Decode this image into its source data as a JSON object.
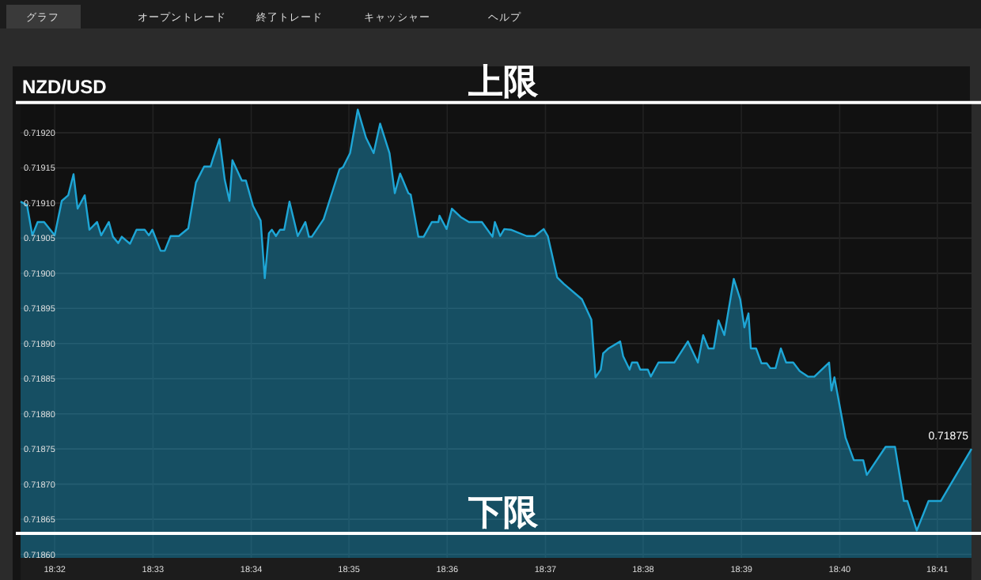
{
  "chart_data": {
    "type": "area",
    "title": "NZD/USD",
    "xlim": [
      18.5275,
      18.6891
    ],
    "ylim": [
      0.718595,
      0.719245
    ],
    "xticks": [
      {
        "value": 18.5333,
        "label": "18:32"
      },
      {
        "value": 18.55,
        "label": "18:33"
      },
      {
        "value": 18.5667,
        "label": "18:34"
      },
      {
        "value": 18.5833,
        "label": "18:35"
      },
      {
        "value": 18.6,
        "label": "18:36"
      },
      {
        "value": 18.6167,
        "label": "18:37"
      },
      {
        "value": 18.6333,
        "label": "18:38"
      },
      {
        "value": 18.65,
        "label": "18:39"
      },
      {
        "value": 18.6667,
        "label": "18:40"
      },
      {
        "value": 18.6833,
        "label": "18:41"
      }
    ],
    "yticks": [
      {
        "value": 0.7186,
        "label": "0.71860"
      },
      {
        "value": 0.71865,
        "label": "0.71865"
      },
      {
        "value": 0.7187,
        "label": "0.71870"
      },
      {
        "value": 0.71875,
        "label": "0.71875"
      },
      {
        "value": 0.7188,
        "label": "0.71880"
      },
      {
        "value": 0.71885,
        "label": "0.71885"
      },
      {
        "value": 0.7189,
        "label": "0.71890"
      },
      {
        "value": 0.71895,
        "label": "0.71895"
      },
      {
        "value": 0.719,
        "label": "0.71900"
      },
      {
        "value": 0.71905,
        "label": "0.71905"
      },
      {
        "value": 0.7191,
        "label": "0.71910"
      },
      {
        "value": 0.71915,
        "label": "0.71915"
      },
      {
        "value": 0.7192,
        "label": "0.71920"
      }
    ],
    "grid": true,
    "series": [
      {
        "color": "#1ea6d6",
        "x": [
          18.5275,
          18.5286,
          18.5295,
          18.5304,
          18.5315,
          18.5333,
          18.5345,
          18.5356,
          18.5365,
          18.5372,
          18.5384,
          18.5392,
          18.5405,
          18.5412,
          18.5425,
          18.5432,
          18.5441,
          18.5447,
          18.5461,
          18.5472,
          18.5486,
          18.5493,
          18.5499,
          18.5513,
          18.552,
          18.553,
          18.5544,
          18.556,
          18.5573,
          18.5587,
          18.5598,
          18.5602,
          18.5613,
          18.5622,
          18.563,
          18.5635,
          18.5651,
          18.5658,
          18.567,
          18.5683,
          18.569,
          18.5697,
          18.5702,
          18.5709,
          18.5716,
          18.5723,
          18.5732,
          18.5746,
          18.5759,
          18.5765,
          18.577,
          18.579,
          18.5817,
          18.5823,
          18.5835,
          18.5848,
          18.5862,
          18.5875,
          18.5886,
          18.5902,
          18.5911,
          18.592,
          18.5934,
          18.5938,
          18.5951,
          18.596,
          18.5974,
          18.5985,
          18.5987,
          18.5999,
          18.6008,
          18.6023,
          18.6037,
          18.6059,
          18.6077,
          18.6081,
          18.609,
          18.6097,
          18.6108,
          18.6135,
          18.6149,
          18.6164,
          18.6171,
          18.6187,
          18.6198,
          18.6229,
          18.6245,
          18.6252,
          18.6261,
          18.6265,
          18.6274,
          18.6294,
          18.6299,
          18.631,
          18.6314,
          18.6323,
          18.6328,
          18.6341,
          18.6346,
          18.6359,
          18.6386,
          18.6409,
          18.6426,
          18.6435,
          18.6444,
          18.6453,
          18.6461,
          18.6471,
          18.6487,
          18.6498,
          18.6505,
          18.6512,
          18.6516,
          18.6525,
          18.6534,
          18.6543,
          18.6549,
          18.6558,
          18.6567,
          18.6576,
          18.6588,
          18.6599,
          18.6613,
          18.6624,
          18.6649,
          18.6653,
          18.6658,
          18.6677,
          18.6691,
          18.6707,
          18.6713,
          18.6745,
          18.6761,
          18.6776,
          18.6782,
          18.6798,
          18.6818,
          18.6839,
          18.6891
        ],
        "values": [
          0.719102,
          0.719097,
          0.719054,
          0.719073,
          0.719073,
          0.719054,
          0.719103,
          0.719111,
          0.719141,
          0.719092,
          0.719111,
          0.719062,
          0.719073,
          0.719054,
          0.719073,
          0.719052,
          0.719043,
          0.719052,
          0.719042,
          0.719062,
          0.719062,
          0.719054,
          0.719062,
          0.719032,
          0.719032,
          0.719053,
          0.719053,
          0.719064,
          0.719129,
          0.719152,
          0.719152,
          0.719163,
          0.719191,
          0.719133,
          0.719103,
          0.719161,
          0.719132,
          0.719132,
          0.719096,
          0.719075,
          0.718993,
          0.719057,
          0.719062,
          0.719053,
          0.719062,
          0.719062,
          0.719102,
          0.719053,
          0.719073,
          0.719052,
          0.719052,
          0.719077,
          0.719148,
          0.719151,
          0.719171,
          0.719233,
          0.719193,
          0.719171,
          0.719213,
          0.719171,
          0.719114,
          0.719142,
          0.719114,
          0.719112,
          0.719052,
          0.719052,
          0.719073,
          0.719073,
          0.719082,
          0.719063,
          0.719092,
          0.71908,
          0.719073,
          0.719073,
          0.719052,
          0.719073,
          0.719053,
          0.719063,
          0.719062,
          0.719053,
          0.719053,
          0.719063,
          0.719053,
          0.718994,
          0.718985,
          0.718963,
          0.718934,
          0.718852,
          0.718863,
          0.718886,
          0.718893,
          0.718903,
          0.718882,
          0.718863,
          0.718873,
          0.718873,
          0.718863,
          0.718863,
          0.718853,
          0.718873,
          0.718873,
          0.718903,
          0.718873,
          0.718912,
          0.718893,
          0.718893,
          0.718933,
          0.718912,
          0.718992,
          0.718963,
          0.718923,
          0.718943,
          0.718893,
          0.718893,
          0.718872,
          0.718872,
          0.718865,
          0.718865,
          0.718893,
          0.718873,
          0.718873,
          0.718861,
          0.718853,
          0.718853,
          0.718873,
          0.718833,
          0.718852,
          0.718766,
          0.718734,
          0.718734,
          0.718713,
          0.718753,
          0.718753,
          0.718676,
          0.718676,
          0.718634,
          0.718676,
          0.718676,
          0.71875
        ]
      }
    ],
    "ref_lines": [
      {
        "axis": "y",
        "value": 0.719243,
        "label": "上限",
        "color": "#ffffff"
      },
      {
        "axis": "y",
        "value": 0.71863,
        "label": "下限",
        "color": "#ffffff"
      }
    ],
    "annotations": [
      "グラフ",
      "オープントレード",
      "終了トレード",
      "キャッシャー",
      "ヘルプ",
      {
        "text": "0.71875",
        "x": 18.6891,
        "y": 0.71875
      }
    ]
  }
}
